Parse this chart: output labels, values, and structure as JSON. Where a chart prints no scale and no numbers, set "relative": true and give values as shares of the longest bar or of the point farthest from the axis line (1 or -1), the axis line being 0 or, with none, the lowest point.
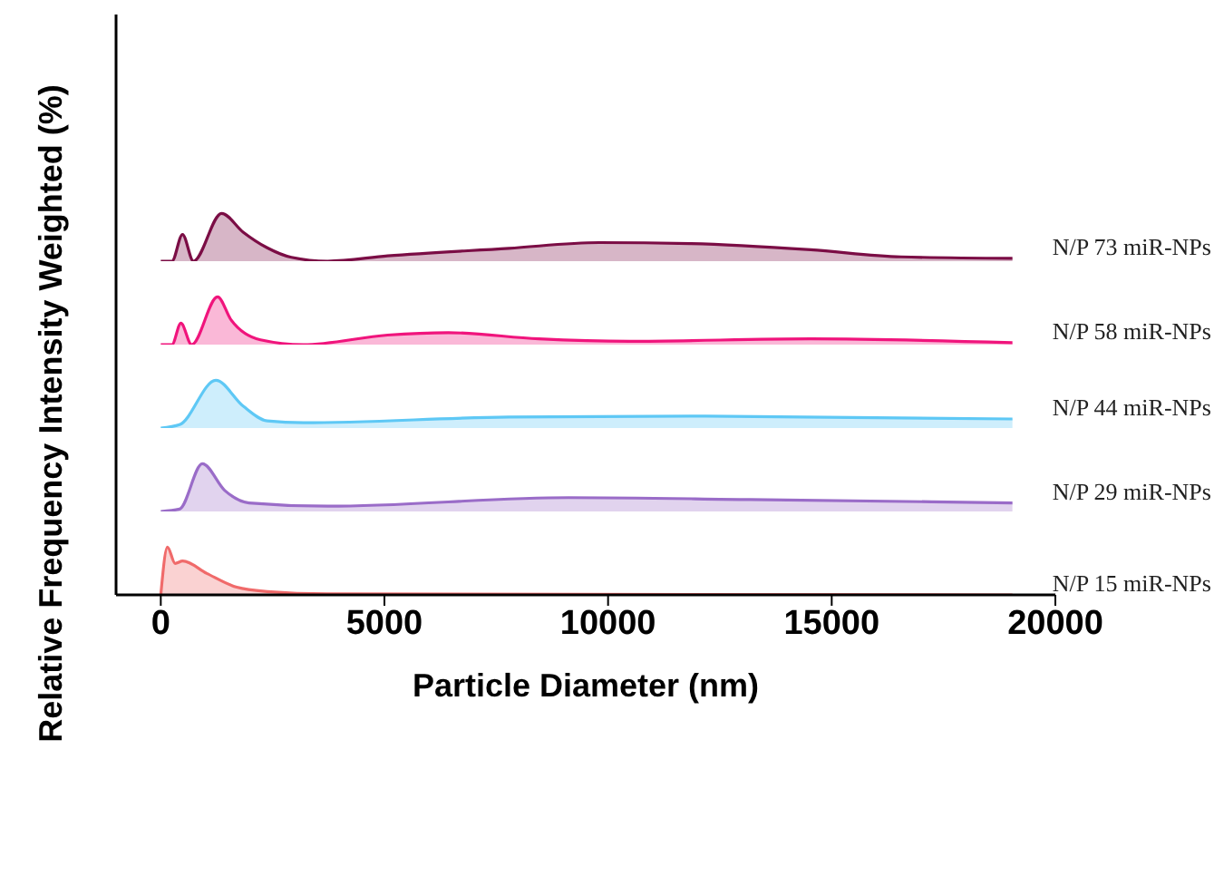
{
  "chart_data": [
    {
      "type": "area",
      "ylabel": "Relative Frequency Intensity Weighted (%)",
      "relative": true,
      "xlim": [
        -1000,
        20000
      ],
      "tick_labels": false,
      "series": [
        {
          "name": "N/P 73 miR-NPs",
          "color": "#7b0d45",
          "x": [
            0,
            250,
            486,
            730,
            1360,
            1840,
            2380,
            2920,
            3730,
            5070,
            7780,
            9800,
            11830,
            14530,
            16550,
            19040
          ],
          "values": [
            0,
            0,
            0.56,
            0,
            1,
            0.61,
            0.28,
            0.08,
            0,
            0.11,
            0.27,
            0.39,
            0.37,
            0.24,
            0.09,
            0.06
          ]
        }
      ]
    },
    {
      "type": "area",
      "relative": true,
      "xlim": [
        -1000,
        20000
      ],
      "tick_labels": false,
      "series": [
        {
          "name": "N/P 58 miR-NPs",
          "color": "#f0147c",
          "x": [
            0,
            250,
            450,
            690,
            1270,
            1570,
            2230,
            3190,
            5070,
            6430,
            8450,
            10480,
            14530,
            19040
          ],
          "values": [
            0,
            0,
            0.45,
            0,
            1,
            0.52,
            0.1,
            0,
            0.2,
            0.25,
            0.12,
            0.07,
            0.12,
            0.04
          ]
        }
      ]
    },
    {
      "type": "area",
      "relative": true,
      "xlim": [
        -1000,
        20000
      ],
      "tick_labels": false,
      "series": [
        {
          "name": "N/P 44 miR-NPs",
          "color": "#5ec8f5",
          "x": [
            0,
            420,
            1230,
            1840,
            2380,
            3190,
            7780,
            11830,
            19040
          ],
          "values": [
            0,
            0.07,
            1,
            0.46,
            0.15,
            0.11,
            0.23,
            0.25,
            0.19
          ]
        }
      ]
    },
    {
      "type": "area",
      "relative": true,
      "xlim": [
        -1000,
        20000
      ],
      "tick_labels": false,
      "series": [
        {
          "name": "N/P 29 miR-NPs",
          "color": "#9a6cc8",
          "x": [
            0,
            420,
            930,
            1430,
            1970,
            3730,
            9120,
            13170,
            19040
          ],
          "values": [
            0,
            0.05,
            1,
            0.44,
            0.18,
            0.11,
            0.29,
            0.25,
            0.18
          ]
        }
      ]
    },
    {
      "type": "area",
      "xlabel": "Particle Diameter (nm)",
      "relative": true,
      "xlim": [
        -1000,
        20000
      ],
      "xticks": [
        0,
        5000,
        10000,
        15000,
        20000
      ],
      "tick_labels": "x",
      "series": [
        {
          "name": "N/P 15 miR-NPs",
          "color": "#f06a6a",
          "x": [
            0,
            150,
            320,
            490,
            1030,
            1700,
            2380,
            3730,
            19040
          ],
          "values": [
            0,
            1,
            0.66,
            0.71,
            0.45,
            0.16,
            0.07,
            0.02,
            0
          ]
        }
      ]
    }
  ]
}
